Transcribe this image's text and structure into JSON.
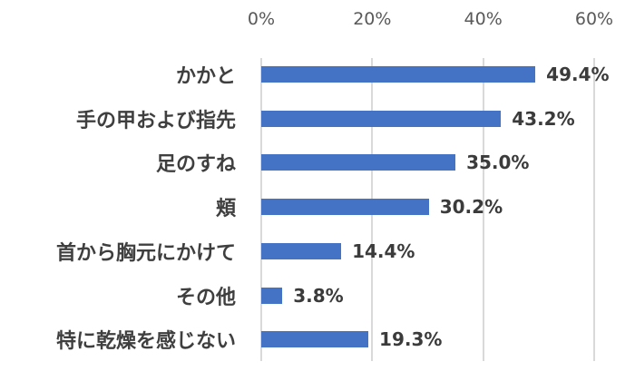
{
  "chart_data": {
    "type": "bar",
    "orientation": "horizontal",
    "title": "",
    "xlabel": "",
    "ylabel": "",
    "xlim": [
      0,
      60
    ],
    "x_ticks": [
      "0%",
      "20%",
      "40%",
      "60%"
    ],
    "x_tick_values": [
      0,
      20,
      40,
      60
    ],
    "x_axis_position": "top",
    "grid": true,
    "legend": null,
    "bar_color": "#4472C4",
    "categories": [
      "かかと",
      "手の甲および指先",
      "足のすね",
      "頬",
      "首から胸元にかけて",
      "その他",
      "特に乾燥を感じない"
    ],
    "values": [
      49.4,
      43.2,
      35.0,
      30.2,
      14.4,
      3.8,
      19.3
    ],
    "value_labels": [
      "49.4%",
      "43.2%",
      "35.0%",
      "30.2%",
      "14.4%",
      "3.8%",
      "19.3%"
    ],
    "unit": "%"
  }
}
